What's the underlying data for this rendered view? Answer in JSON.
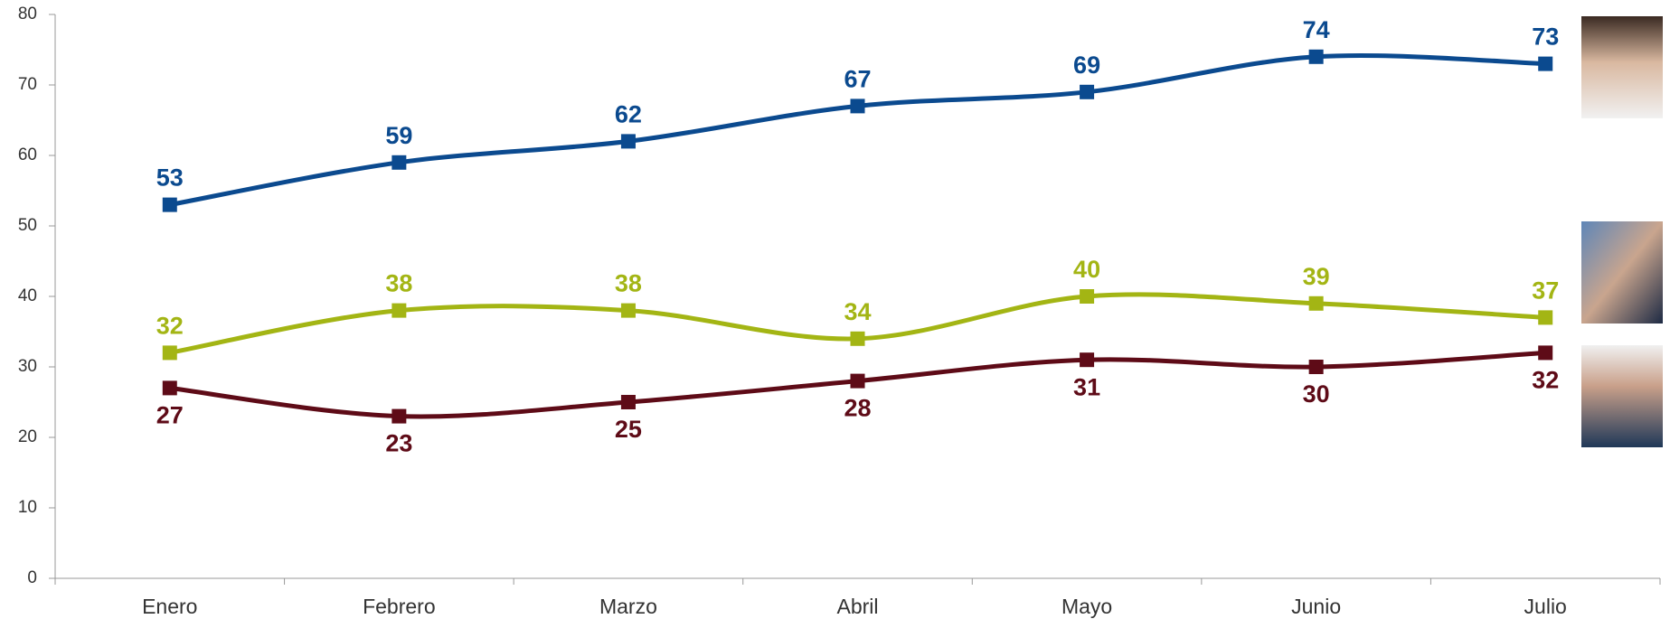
{
  "chart_data": {
    "type": "line",
    "categories": [
      "Enero",
      "Febrero",
      "Marzo",
      "Abril",
      "Mayo",
      "Junio",
      "Julio"
    ],
    "series": [
      {
        "color": "#0b4a8f",
        "values": [
          53,
          59,
          62,
          67,
          69,
          74,
          73
        ]
      },
      {
        "color": "#a3b514",
        "values": [
          32,
          38,
          38,
          34,
          40,
          39,
          37
        ]
      },
      {
        "color": "#5e0b17",
        "values": [
          27,
          23,
          25,
          28,
          31,
          30,
          32
        ]
      }
    ],
    "ylim": [
      0,
      80
    ],
    "yticks": [
      0,
      10,
      20,
      30,
      40,
      50,
      60,
      70,
      80
    ],
    "grid": false
  }
}
